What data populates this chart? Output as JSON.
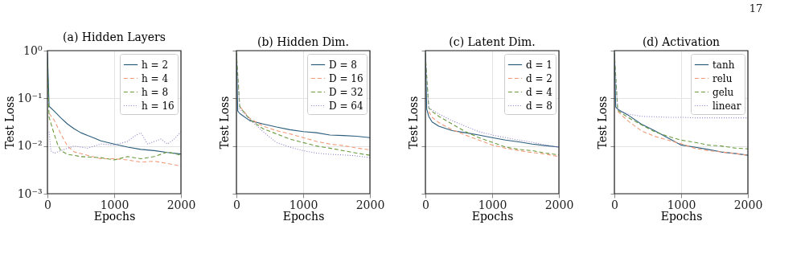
{
  "chart_data": [
    {
      "type": "line",
      "title": "(a) Hidden Layers",
      "xlabel": "Epochs",
      "ylabel": "Test Loss",
      "log": "y",
      "grid": true,
      "legend": "top right",
      "xlim": [
        0,
        2000
      ],
      "xticks": [
        0,
        1000,
        2000
      ],
      "ylim": [
        0.001,
        1
      ],
      "yticks": [
        {
          "value": 0.001,
          "label": "10⁻³"
        },
        {
          "value": 0.01,
          "label": "10⁻²"
        },
        {
          "value": 0.1,
          "label": "10⁻¹"
        },
        {
          "value": 1,
          "label": "10⁰"
        }
      ],
      "series": [
        {
          "name": "h = 2",
          "color": "#2b5d7c",
          "line_style": "solid",
          "x": [
            0,
            25,
            100,
            200,
            300,
            400,
            500,
            600,
            700,
            800,
            1000,
            1200,
            1400,
            1600,
            1800,
            2000
          ],
          "values": [
            0.9,
            0.068,
            0.054,
            0.039,
            0.029,
            0.023,
            0.019,
            0.0166,
            0.0147,
            0.0128,
            0.011,
            0.0095,
            0.0085,
            0.008,
            0.0073,
            0.0068
          ]
        },
        {
          "name": "h = 4",
          "color": "#f19a78",
          "line_style": "dashed",
          "x": [
            25,
            100,
            200,
            300,
            400,
            600,
            800,
            1000,
            1200,
            1400,
            1600,
            1800,
            2000
          ],
          "values": [
            0.048,
            0.035,
            0.018,
            0.01,
            0.0075,
            0.0064,
            0.0054,
            0.0054,
            0.0051,
            0.0046,
            0.0048,
            0.0043,
            0.0038
          ]
        },
        {
          "name": "h = 8",
          "color": "#6a9a3c",
          "line_style": "dashed",
          "x": [
            0,
            25,
            100,
            150,
            200,
            300,
            500,
            800,
            1000,
            1200,
            1400,
            1600,
            1800,
            2000
          ],
          "values": [
            0.5,
            0.04,
            0.018,
            0.011,
            0.008,
            0.0067,
            0.006,
            0.0057,
            0.0051,
            0.006,
            0.0054,
            0.006,
            0.0075,
            0.0064
          ]
        },
        {
          "name": "h = 16",
          "color": "#8c80cc",
          "line_style": "dotted",
          "x": [
            25,
            50,
            100,
            200,
            400,
            600,
            800,
            1000,
            1200,
            1300,
            1400,
            1500,
            1700,
            1800,
            1900,
            2000
          ],
          "values": [
            0.02,
            0.008,
            0.007,
            0.008,
            0.01,
            0.009,
            0.011,
            0.0105,
            0.0125,
            0.016,
            0.019,
            0.011,
            0.014,
            0.011,
            0.014,
            0.02
          ]
        }
      ]
    },
    {
      "type": "line",
      "title": "(b) Hidden Dim.",
      "xlabel": "Epochs",
      "ylabel": "Test Loss",
      "log": "y",
      "grid": true,
      "legend": "top right",
      "tick_labels": "x",
      "xlim": [
        0,
        2000
      ],
      "xticks": [
        0,
        1000,
        2000
      ],
      "ylim": [
        0.001,
        1
      ],
      "yticks": [
        {
          "value": 0.001,
          "label": null
        },
        {
          "value": 0.01,
          "label": null
        },
        {
          "value": 0.1,
          "label": null
        },
        {
          "value": 1,
          "label": null
        }
      ],
      "series": [
        {
          "name": "D = 8",
          "color": "#2b5d7c",
          "line_style": "solid",
          "x": [
            0,
            20,
            50,
            200,
            400,
            600,
            800,
            1000,
            1200,
            1400,
            1600,
            1800,
            2000
          ],
          "values": [
            0.9,
            0.054,
            0.048,
            0.034,
            0.029,
            0.025,
            0.022,
            0.02,
            0.019,
            0.017,
            0.0166,
            0.016,
            0.015
          ]
        },
        {
          "name": "D = 16",
          "color": "#f19a78",
          "line_style": "dashed",
          "x": [
            50,
            200,
            400,
            600,
            800,
            1000,
            1200,
            1400,
            1600,
            1800,
            2000
          ],
          "values": [
            0.067,
            0.038,
            0.026,
            0.021,
            0.018,
            0.015,
            0.0125,
            0.011,
            0.0102,
            0.0091,
            0.0083
          ]
        },
        {
          "name": "D = 32",
          "color": "#6a9a3c",
          "line_style": "dashed",
          "x": [
            0,
            50,
            200,
            400,
            600,
            800,
            1000,
            1200,
            1400,
            1600,
            1800,
            2000
          ],
          "values": [
            0.9,
            0.067,
            0.036,
            0.023,
            0.018,
            0.014,
            0.0118,
            0.01,
            0.009,
            0.008,
            0.0071,
            0.0064
          ]
        },
        {
          "name": "D = 64",
          "color": "#8c80cc",
          "line_style": "dotted",
          "x": [
            0,
            50,
            200,
            400,
            600,
            800,
            1000,
            1200,
            1400,
            1600,
            1800,
            2000
          ],
          "values": [
            0.8,
            0.06,
            0.036,
            0.02,
            0.0118,
            0.0095,
            0.008,
            0.0071,
            0.0067,
            0.0065,
            0.0062,
            0.0057
          ]
        }
      ]
    },
    {
      "type": "line",
      "title": "(c) Latent Dim.",
      "xlabel": "Epochs",
      "ylabel": "Test Loss",
      "log": "y",
      "grid": true,
      "legend": "top right",
      "tick_labels": "x",
      "xlim": [
        0,
        2000
      ],
      "xticks": [
        0,
        1000,
        2000
      ],
      "ylim": [
        0.001,
        1
      ],
      "yticks": [
        {
          "value": 0.001,
          "label": null
        },
        {
          "value": 0.01,
          "label": null
        },
        {
          "value": 0.1,
          "label": null
        },
        {
          "value": 1,
          "label": null
        }
      ],
      "series": [
        {
          "name": "d = 1",
          "color": "#2b5d7c",
          "line_style": "solid",
          "x": [
            0,
            20,
            50,
            100,
            200,
            400,
            600,
            800,
            1000,
            1200,
            1400,
            1600,
            1800,
            2000
          ],
          "values": [
            0.9,
            0.059,
            0.042,
            0.032,
            0.026,
            0.021,
            0.019,
            0.017,
            0.015,
            0.0133,
            0.0122,
            0.011,
            0.0102,
            0.0095
          ]
        },
        {
          "name": "d = 2",
          "color": "#f19a78",
          "line_style": "dashed",
          "x": [
            50,
            100,
            200,
            400,
            600,
            800,
            1000,
            1200,
            1400,
            1600,
            1800,
            2000
          ],
          "values": [
            0.053,
            0.04,
            0.031,
            0.022,
            0.017,
            0.0133,
            0.0105,
            0.009,
            0.008,
            0.0073,
            0.0068,
            0.006
          ]
        },
        {
          "name": "d = 4",
          "color": "#6a9a3c",
          "line_style": "dashed",
          "x": [
            0,
            50,
            100,
            200,
            400,
            600,
            800,
            1000,
            1200,
            1400,
            1600,
            1800,
            2000
          ],
          "values": [
            0.8,
            0.063,
            0.053,
            0.042,
            0.029,
            0.02,
            0.015,
            0.012,
            0.0095,
            0.0085,
            0.008,
            0.0071,
            0.0065
          ]
        },
        {
          "name": "d = 8",
          "color": "#8c80cc",
          "line_style": "dotted",
          "x": [
            0,
            50,
            200,
            400,
            600,
            800,
            1000,
            1200,
            1400,
            1600,
            1800,
            2000
          ],
          "values": [
            0.8,
            0.063,
            0.047,
            0.034,
            0.026,
            0.02,
            0.017,
            0.015,
            0.0133,
            0.012,
            0.0105,
            0.0095
          ]
        }
      ]
    },
    {
      "type": "line",
      "title": "(d) Activation",
      "xlabel": "Epochs",
      "ylabel": "Test Loss",
      "log": "y",
      "grid": true,
      "legend": "top right",
      "tick_labels": "x",
      "annotations": [
        "17"
      ],
      "xlim": [
        0,
        2000
      ],
      "xticks": [
        0,
        1000,
        2000
      ],
      "ylim": [
        0.001,
        1
      ],
      "yticks": [
        {
          "value": 0.001,
          "label": null
        },
        {
          "value": 0.01,
          "label": null
        },
        {
          "value": 0.1,
          "label": null
        },
        {
          "value": 1,
          "label": null
        }
      ],
      "series": [
        {
          "name": "tanh",
          "color": "#2b5d7c",
          "line_style": "solid",
          "x": [
            0,
            20,
            50,
            200,
            400,
            600,
            800,
            1000,
            1200,
            1400,
            1600,
            1800,
            2000
          ],
          "values": [
            0.9,
            0.066,
            0.059,
            0.045,
            0.029,
            0.021,
            0.0148,
            0.0105,
            0.0095,
            0.0085,
            0.0075,
            0.007,
            0.0064
          ]
        },
        {
          "name": "relu",
          "color": "#f19a78",
          "line_style": "dashed",
          "x": [
            50,
            200,
            400,
            600,
            800,
            1000,
            1200,
            1400,
            1600,
            1800,
            2000
          ],
          "values": [
            0.053,
            0.034,
            0.021,
            0.016,
            0.0133,
            0.0112,
            0.009,
            0.008,
            0.0075,
            0.007,
            0.0064
          ]
        },
        {
          "name": "gelu",
          "color": "#6a9a3c",
          "line_style": "dashed",
          "x": [
            0,
            50,
            200,
            400,
            600,
            800,
            1000,
            1200,
            1400,
            1600,
            1800,
            2000
          ],
          "values": [
            0.9,
            0.056,
            0.04,
            0.028,
            0.02,
            0.016,
            0.0133,
            0.012,
            0.0105,
            0.01,
            0.0091,
            0.0087
          ]
        },
        {
          "name": "linear",
          "color": "#8c80cc",
          "line_style": "dotted",
          "x": [
            0,
            50,
            100,
            200,
            400,
            600,
            800,
            1000,
            1200,
            1400,
            1600,
            1800,
            2000
          ],
          "values": [
            0.8,
            0.059,
            0.053,
            0.047,
            0.042,
            0.041,
            0.04,
            0.04,
            0.039,
            0.039,
            0.039,
            0.039,
            0.039
          ]
        }
      ]
    }
  ]
}
